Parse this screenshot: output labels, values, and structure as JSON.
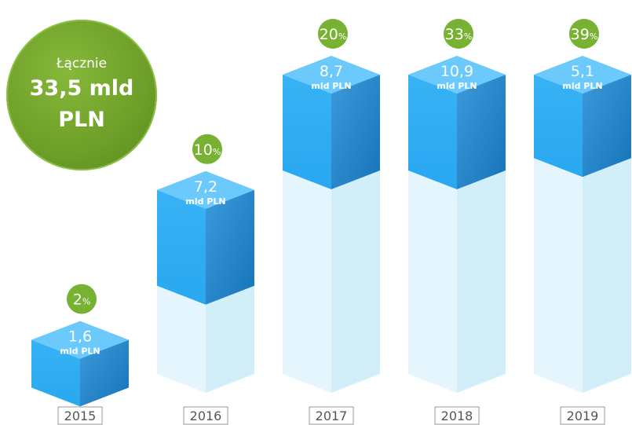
{
  "summary": {
    "label": "Łącznie",
    "value": "33,5 mld",
    "unit": "PLN"
  },
  "colors": {
    "badge_green": "#78b233",
    "box_top": "#6cc9fb",
    "box_front": "#29a8f0",
    "box_side": "#1673b8",
    "ghost_front": "#e4f5fd",
    "ghost_side": "#d2eef9",
    "year_border": "#9a9a9a",
    "year_text": "#555555"
  },
  "chart_data": {
    "type": "bar",
    "title": "",
    "categories": [
      "2015",
      "2016",
      "2017",
      "2018",
      "2019"
    ],
    "values": [
      1.6,
      7.2,
      8.7,
      10.9,
      5.1
    ],
    "value_labels": [
      "1,6",
      "7,2",
      "8,7",
      "10,9",
      "5,1"
    ],
    "unit_label": "mld PLN",
    "percent_labels": [
      "2",
      "10",
      "20",
      "33",
      "39"
    ],
    "percent_sign": "%",
    "cumulative_percent": [
      2,
      10,
      20,
      33,
      39
    ]
  }
}
